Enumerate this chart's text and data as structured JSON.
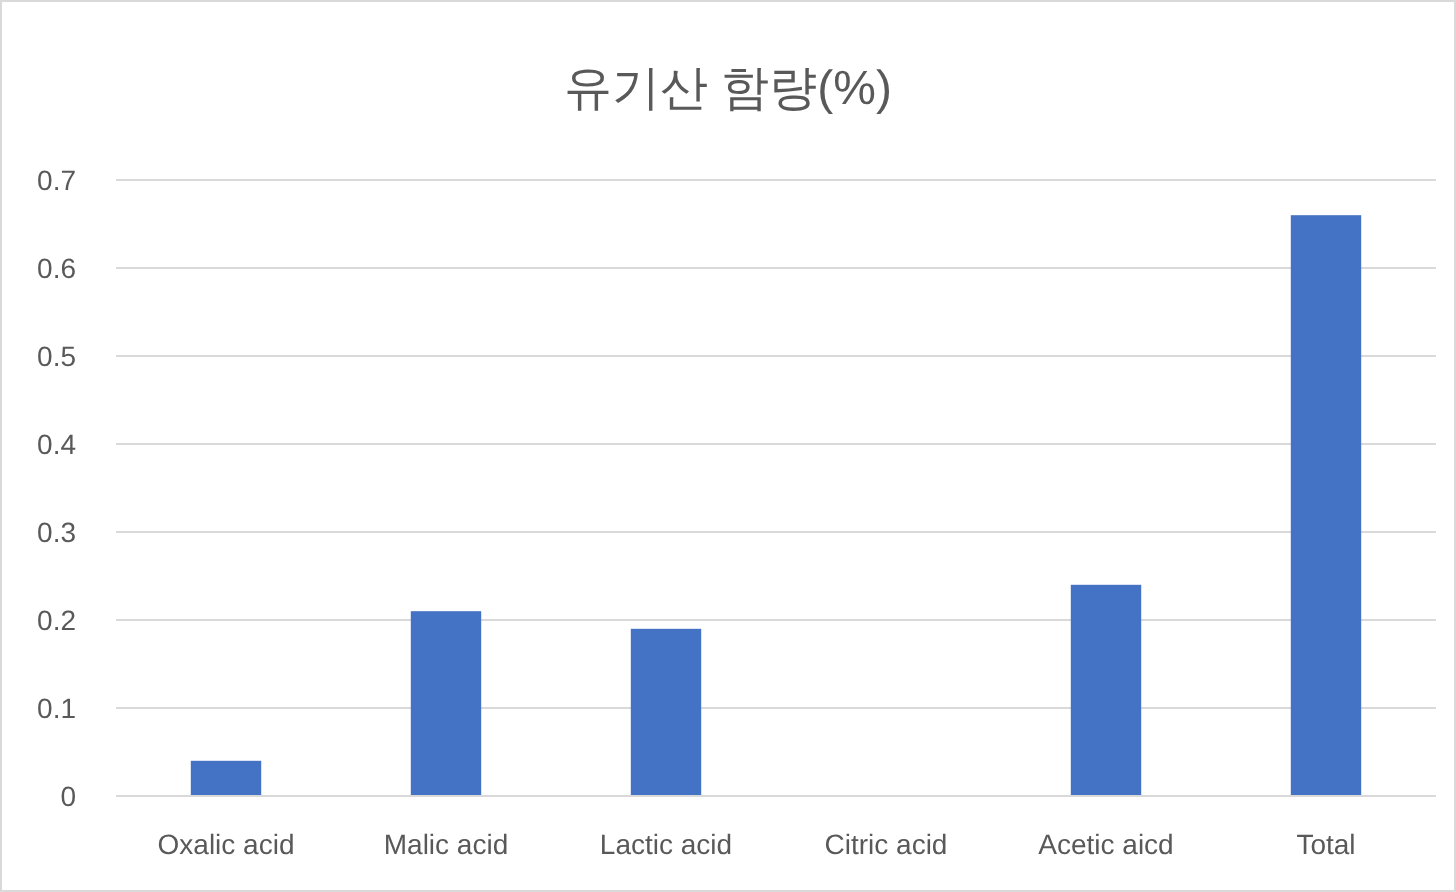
{
  "chart_data": {
    "type": "bar",
    "title": "유기산 함량(%)",
    "categories": [
      "Oxalic acid",
      "Malic acid",
      "Lactic acid",
      "Citric acid",
      "Acetic aicd",
      "Total"
    ],
    "values": [
      0.04,
      0.21,
      0.19,
      0,
      0.24,
      0.66
    ],
    "color": "#4472c4",
    "ylim": [
      0,
      0.7
    ],
    "yticks": [
      0,
      0.1,
      0.2,
      0.3,
      0.4,
      0.5,
      0.6,
      0.7
    ],
    "grid": "y"
  }
}
